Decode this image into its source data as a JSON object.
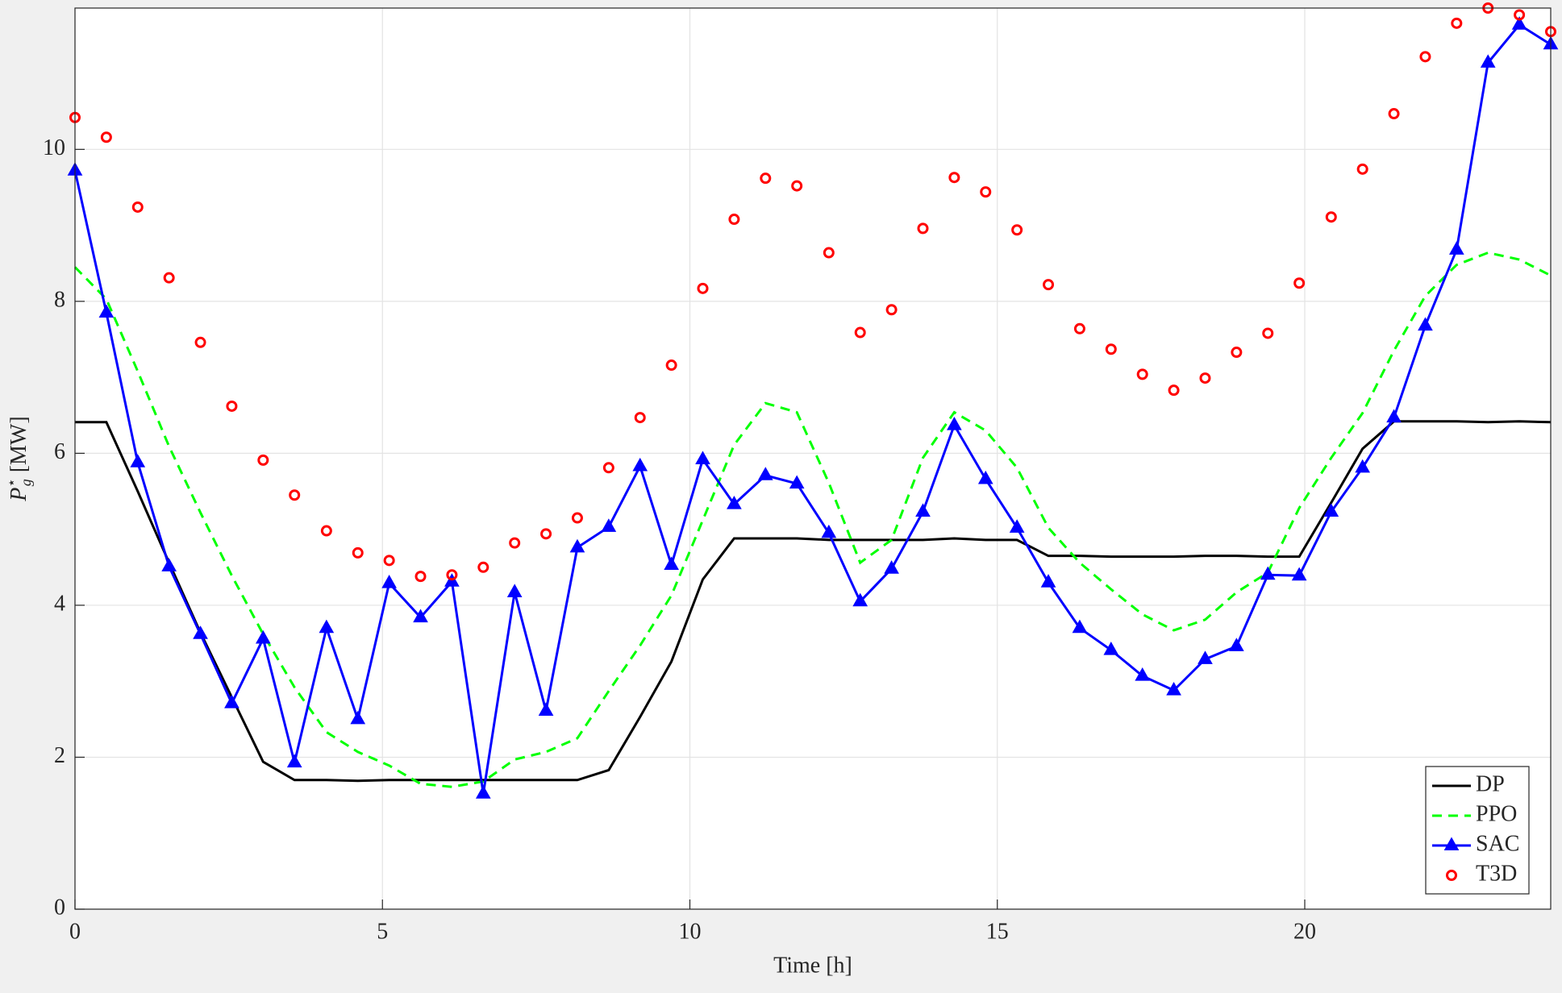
{
  "chart_data": {
    "type": "line",
    "x_label": "Time [h]",
    "y_label": {
      "symbol": "P",
      "sup": "⋆",
      "sub": "g",
      "unit": "[MW]"
    },
    "x": [
      0,
      0.51,
      1.02,
      1.53,
      2.04,
      2.55,
      3.06,
      3.57,
      4.09,
      4.6,
      5.11,
      5.62,
      6.13,
      6.64,
      7.15,
      7.66,
      8.17,
      8.68,
      9.19,
      9.7,
      10.21,
      10.72,
      11.23,
      11.74,
      12.26,
      12.77,
      13.28,
      13.79,
      14.3,
      14.81,
      15.32,
      15.83,
      16.34,
      16.85,
      17.36,
      17.87,
      18.38,
      18.89,
      19.4,
      19.91,
      20.43,
      20.94,
      21.45,
      21.96,
      22.47,
      22.98,
      23.49,
      24
    ],
    "xlim": [
      0,
      24
    ],
    "xticks": [
      0,
      5,
      10,
      15,
      20
    ],
    "ylim": [
      0,
      11.86
    ],
    "yticks": [
      0,
      2,
      4,
      6,
      8,
      10
    ],
    "grid": true,
    "legend": "lower right",
    "series": [
      {
        "name": "DP",
        "color": "#000000",
        "style": "solid",
        "marker": "none",
        "values": [
          6.41,
          6.41,
          5.5,
          4.56,
          3.64,
          2.79,
          1.94,
          1.7,
          1.7,
          1.69,
          1.7,
          1.7,
          1.7,
          1.7,
          1.7,
          1.7,
          1.7,
          1.83,
          2.53,
          3.26,
          4.34,
          4.88,
          4.88,
          4.88,
          4.86,
          4.86,
          4.86,
          4.86,
          4.88,
          4.86,
          4.86,
          4.65,
          4.65,
          4.64,
          4.64,
          4.64,
          4.65,
          4.65,
          4.64,
          4.64,
          5.35,
          6.06,
          6.42,
          6.42,
          6.42,
          6.41,
          6.42,
          6.41
        ]
      },
      {
        "name": "PPO",
        "color": "#00ff00",
        "style": "dashed",
        "marker": "none",
        "values": [
          8.45,
          8.03,
          7.08,
          6.09,
          5.22,
          4.39,
          3.62,
          2.92,
          2.33,
          2.07,
          1.89,
          1.65,
          1.61,
          1.68,
          1.97,
          2.07,
          2.25,
          2.87,
          3.47,
          4.13,
          5.12,
          6.11,
          6.66,
          6.54,
          5.61,
          4.56,
          4.86,
          5.94,
          6.54,
          6.3,
          5.81,
          5.02,
          4.56,
          4.21,
          3.88,
          3.67,
          3.81,
          4.17,
          4.43,
          5.28,
          5.94,
          6.53,
          7.35,
          8.07,
          8.48,
          8.64,
          8.55,
          8.34
        ]
      },
      {
        "name": "SAC",
        "color": "#0000ff",
        "style": "solid",
        "marker": "triangle",
        "values": [
          9.72,
          7.85,
          5.88,
          4.51,
          3.62,
          2.71,
          3.56,
          1.93,
          3.7,
          2.5,
          4.29,
          3.84,
          4.31,
          1.52,
          4.17,
          2.61,
          4.76,
          5.03,
          5.83,
          4.53,
          5.92,
          5.33,
          5.71,
          5.6,
          4.95,
          4.05,
          4.48,
          5.23,
          6.37,
          5.66,
          5.02,
          4.3,
          3.7,
          3.41,
          3.07,
          2.88,
          3.29,
          3.46,
          4.4,
          4.39,
          5.23,
          5.81,
          6.47,
          7.68,
          8.68,
          11.14,
          11.64,
          11.38
        ]
      },
      {
        "name": "T3D",
        "color": "#ff0000",
        "style": "none",
        "marker": "circle",
        "values": [
          10.42,
          10.16,
          9.24,
          8.31,
          7.46,
          6.62,
          5.91,
          5.45,
          4.98,
          4.69,
          4.59,
          4.38,
          4.4,
          4.5,
          4.82,
          4.94,
          5.15,
          5.81,
          6.47,
          7.16,
          8.17,
          9.08,
          9.62,
          9.52,
          8.64,
          7.59,
          7.89,
          8.96,
          9.63,
          9.44,
          8.94,
          8.22,
          7.64,
          7.37,
          7.04,
          6.83,
          6.99,
          7.33,
          7.58,
          8.24,
          9.11,
          9.74,
          10.47,
          11.22,
          11.66,
          11.86,
          11.77,
          11.55
        ]
      }
    ]
  }
}
